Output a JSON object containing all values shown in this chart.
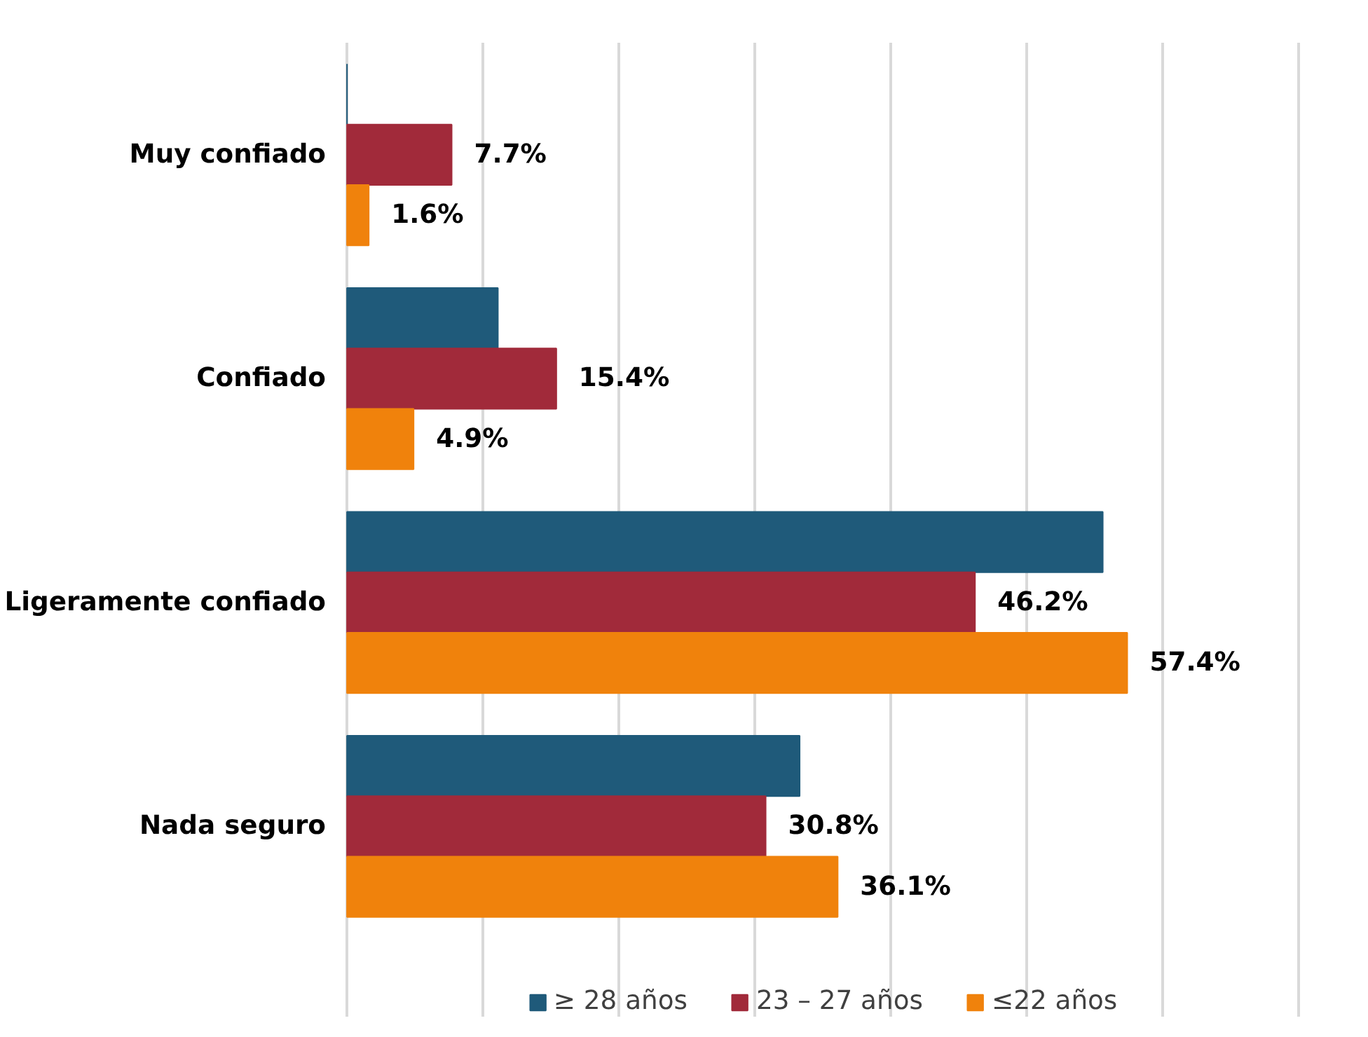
{
  "chart_data": {
    "type": "bar",
    "orientation": "horizontal",
    "categories": [
      "Muy confiado",
      "Confiado",
      "Ligeramente confiado",
      "Nada seguro"
    ],
    "series": [
      {
        "name": "≥ 28 años",
        "color": "#1f5a7a",
        "values": [
          0,
          11.1,
          55.6,
          33.3
        ],
        "value_labels": [
          null,
          null,
          null,
          null
        ]
      },
      {
        "name": "23 – 27 años",
        "color": "#a12a3a",
        "values": [
          7.7,
          15.4,
          46.2,
          30.8
        ],
        "value_labels": [
          "7.7%",
          "15.4%",
          "46.2%",
          "30.8%"
        ]
      },
      {
        "name": "≤22 años",
        "color": "#f0820c",
        "values": [
          1.6,
          4.9,
          57.4,
          36.1
        ],
        "value_labels": [
          "1.6%",
          "4.9%",
          "57.4%",
          "36.1%"
        ]
      }
    ],
    "xlim": [
      0,
      70
    ],
    "xticks": [
      {
        "value": 0,
        "label": null
      },
      {
        "value": 10,
        "label": null
      },
      {
        "value": 20,
        "label": null
      },
      {
        "value": 30,
        "label": null
      },
      {
        "value": 40,
        "label": null
      },
      {
        "value": 50,
        "label": null
      },
      {
        "value": 60,
        "label": null
      },
      {
        "value": 70,
        "label": null
      }
    ],
    "tick_labels": "y",
    "grid": "x",
    "legend": "bottom"
  }
}
